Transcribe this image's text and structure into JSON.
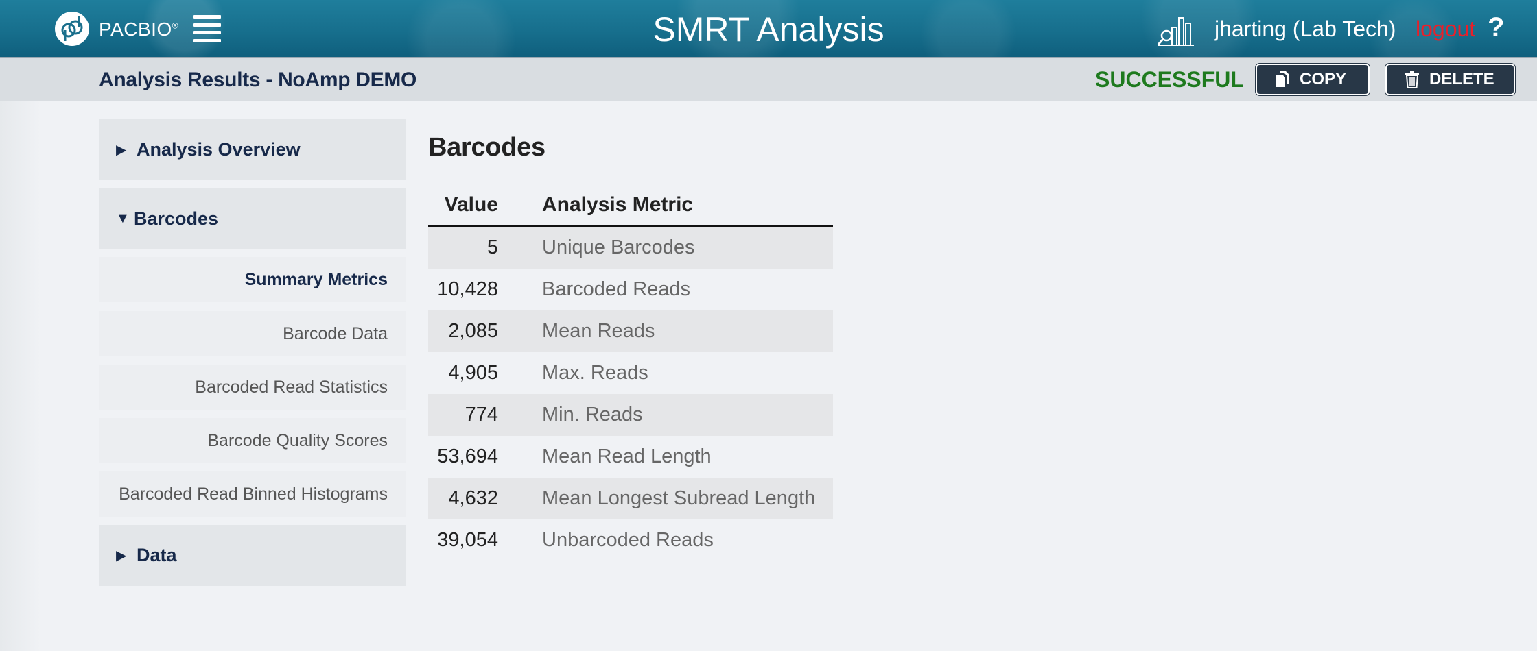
{
  "header": {
    "logo_text": "PACBIO",
    "logo_mark": "®",
    "app_title": "SMRT Analysis",
    "username": "jharting (Lab Tech)",
    "logout_label": "logout",
    "help_label": "?",
    "icons": [
      "pacbio-logo-icon",
      "menu-icon",
      "analytics-icon",
      "help-icon"
    ]
  },
  "subheader": {
    "title": "Analysis Results - NoAmp DEMO",
    "status": "SUCCESSFUL",
    "status_color": "#1e7a1e",
    "copy_label": "COPY",
    "delete_label": "DELETE"
  },
  "nav": {
    "sections": [
      {
        "label": "Analysis Overview",
        "expanded": false
      },
      {
        "label": "Barcodes",
        "expanded": true
      },
      {
        "label": "Data",
        "expanded": false
      }
    ],
    "barcode_items": [
      {
        "label": "Summary Metrics",
        "active": true
      },
      {
        "label": "Barcode Data",
        "active": false
      },
      {
        "label": "Barcoded Read Statistics",
        "active": false
      },
      {
        "label": "Barcode Quality Scores",
        "active": false
      },
      {
        "label": "Barcoded Read Binned Histograms",
        "active": false
      }
    ]
  },
  "main": {
    "title": "Barcodes",
    "table": {
      "headers": [
        "Value",
        "Analysis Metric"
      ],
      "rows": [
        {
          "value": "5",
          "metric": "Unique Barcodes"
        },
        {
          "value": "10,428",
          "metric": "Barcoded Reads"
        },
        {
          "value": "2,085",
          "metric": "Mean Reads"
        },
        {
          "value": "4,905",
          "metric": "Max. Reads"
        },
        {
          "value": "774",
          "metric": "Min. Reads"
        },
        {
          "value": "53,694",
          "metric": "Mean Read Length"
        },
        {
          "value": "4,632",
          "metric": "Mean Longest Subread Length"
        },
        {
          "value": "39,054",
          "metric": "Unbarcoded Reads"
        }
      ]
    }
  }
}
